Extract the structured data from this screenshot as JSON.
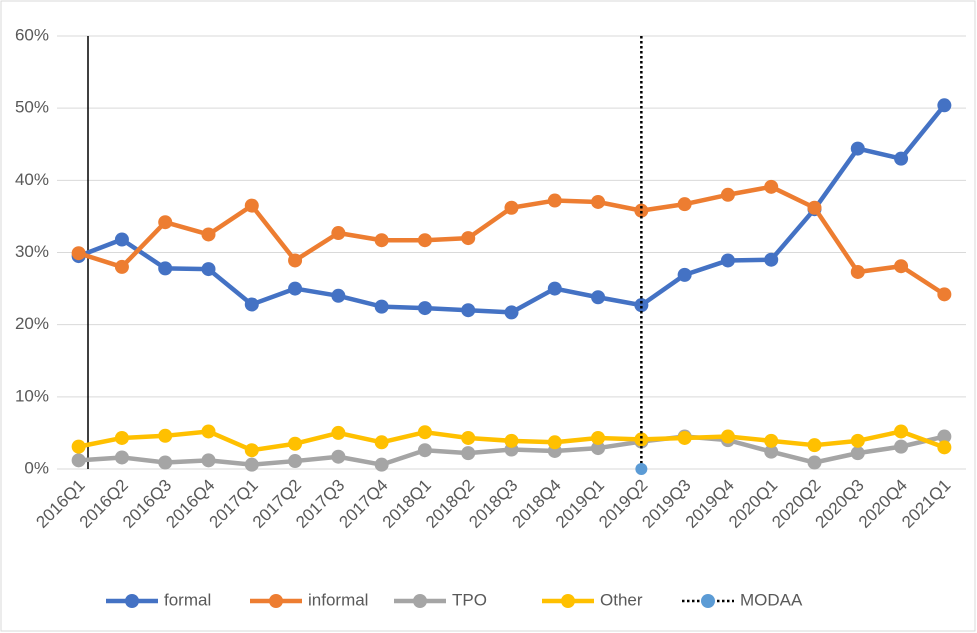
{
  "chart_data": {
    "type": "line",
    "categories": [
      "2016Q1",
      "2016Q2",
      "2016Q3",
      "2016Q4",
      "2017Q1",
      "2017Q2",
      "2017Q3",
      "2017Q4",
      "2018Q1",
      "2018Q2",
      "2018Q3",
      "2018Q4",
      "2019Q1",
      "2019Q2",
      "2019Q3",
      "2019Q4",
      "2020Q1",
      "2020Q2",
      "2020Q3",
      "2020Q4",
      "2021Q1"
    ],
    "series": [
      {
        "name": "formal",
        "color": "#4472c4",
        "values": [
          29.5,
          31.8,
          27.8,
          27.7,
          22.8,
          25,
          24,
          22.5,
          22.3,
          22,
          21.7,
          25,
          23.8,
          22.7,
          26.9,
          28.9,
          29,
          36,
          44.4,
          43,
          50.4
        ]
      },
      {
        "name": "informal",
        "color": "#ed7d31",
        "values": [
          29.9,
          28,
          34.2,
          32.5,
          36.5,
          28.9,
          32.7,
          31.7,
          31.7,
          32,
          36.2,
          37.2,
          37,
          35.8,
          36.7,
          38,
          39.1,
          36.2,
          27.3,
          28.1,
          24.2
        ]
      },
      {
        "name": "TPO",
        "color": "#a5a5a5",
        "values": [
          1.2,
          1.6,
          0.9,
          1.2,
          0.6,
          1.1,
          1.7,
          0.6,
          2.6,
          2.2,
          2.7,
          2.5,
          2.9,
          3.8,
          4.5,
          4,
          2.4,
          0.9,
          2.2,
          3.1,
          4.5
        ]
      },
      {
        "name": "Other",
        "color": "#ffc000",
        "values": [
          3.1,
          4.3,
          4.6,
          5.2,
          2.6,
          3.5,
          5,
          3.7,
          5.1,
          4.3,
          3.9,
          3.7,
          4.3,
          4.1,
          4.3,
          4.5,
          3.9,
          3.3,
          3.9,
          5.2,
          3
        ]
      },
      {
        "name": "MODAA",
        "color": "#5b9bd5",
        "line_color": "#000000",
        "style": "vline",
        "values": [
          null,
          null,
          null,
          null,
          null,
          null,
          null,
          null,
          null,
          null,
          null,
          null,
          null,
          0,
          null,
          null,
          null,
          null,
          null,
          null,
          null
        ]
      }
    ],
    "ylim": [
      0,
      60
    ],
    "yticks": [
      {
        "value": 0,
        "label": "0%"
      },
      {
        "value": 10,
        "label": "10%"
      },
      {
        "value": 20,
        "label": "20%"
      },
      {
        "value": 30,
        "label": "30%"
      },
      {
        "value": 40,
        "label": "40%"
      },
      {
        "value": 50,
        "label": "50%"
      },
      {
        "value": 60,
        "label": "60%"
      }
    ],
    "grid": true,
    "legend": "bottom"
  }
}
